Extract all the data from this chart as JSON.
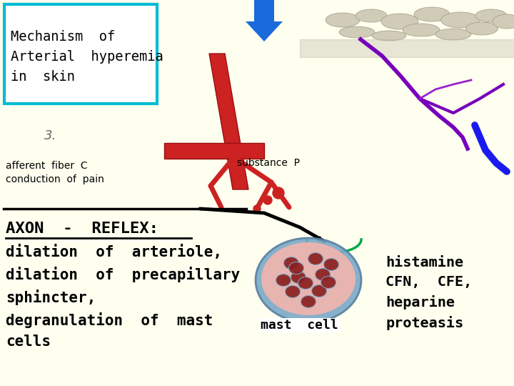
{
  "bg_color": "#ffffff",
  "title_box_text": "Mechanism  of\nArterial  hyperemia\nin  skin",
  "title_box_color": "#00bcd4",
  "title_box_bg": "#ffffff",
  "substance_p_text": "substance  P",
  "afferent_text": "afferent  fiber  C\nconduction  of  pain",
  "axon_reflex_text": "AXON  -  REFLEX:",
  "body_text": "dilation  of  arteriole,\ndilation  of  precapillary\nsphincter,\ndegranulation  of  mast\ncells",
  "mast_cell_text": "mast  cell",
  "histamine_text": "histamine\nCFN,  CFE,\nheparine\nproteasis",
  "slide_bg": "#fffff0",
  "arrow_color": "#1a6adb",
  "mast_cell_outer_color": "#7aa8c7",
  "mast_cell_inner_color": "#e8b4b0",
  "granule_color": "#8b2020"
}
